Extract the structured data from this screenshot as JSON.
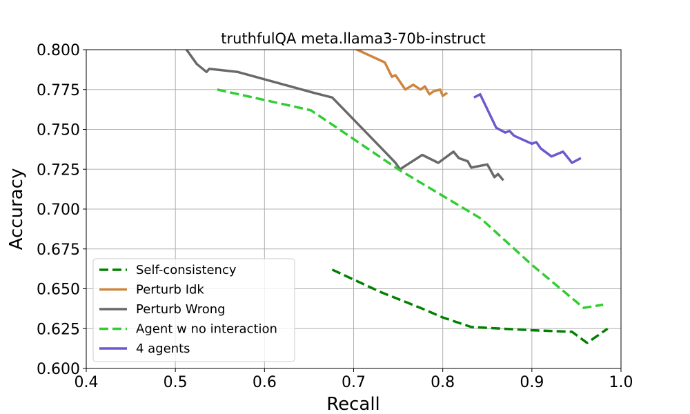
{
  "chart_data": {
    "type": "line",
    "title": "truthfulQA meta.llama3-70b-instruct",
    "xlabel": "Recall",
    "ylabel": "Accuracy",
    "xlim": [
      0.4,
      1.0
    ],
    "ylim": [
      0.6,
      0.8
    ],
    "xticks": [
      0.4,
      0.5,
      0.6,
      0.7,
      0.8,
      0.9,
      1.0
    ],
    "xtick_labels": [
      "0.4",
      "0.5",
      "0.6",
      "0.7",
      "0.8",
      "0.9",
      "1.0"
    ],
    "yticks": [
      0.6,
      0.625,
      0.65,
      0.675,
      0.7,
      0.725,
      0.75,
      0.775,
      0.8
    ],
    "ytick_labels": [
      "0.600",
      "0.625",
      "0.650",
      "0.675",
      "0.700",
      "0.725",
      "0.750",
      "0.775",
      "0.800"
    ],
    "grid": true,
    "legend_position": "lower-left",
    "series": [
      {
        "name": "Self-consistency",
        "color": "#008000",
        "dash": "dashed",
        "x": [
          0.676,
          0.73,
          0.775,
          0.8,
          0.832,
          0.9,
          0.945,
          0.962,
          0.985
        ],
        "y": [
          0.662,
          0.648,
          0.638,
          0.632,
          0.626,
          0.624,
          0.623,
          0.616,
          0.625
        ]
      },
      {
        "name": "Perturb Idk",
        "color": "#cd853f",
        "dash": "solid",
        "x": [
          0.7,
          0.735,
          0.743,
          0.747,
          0.758,
          0.767,
          0.775,
          0.78,
          0.785,
          0.79,
          0.797,
          0.8,
          0.805
        ],
        "y": [
          0.801,
          0.792,
          0.783,
          0.784,
          0.775,
          0.778,
          0.775,
          0.777,
          0.772,
          0.774,
          0.775,
          0.771,
          0.773
        ]
      },
      {
        "name": "Perturb Wrong",
        "color": "#696969",
        "dash": "solid",
        "x": [
          0.51,
          0.524,
          0.535,
          0.538,
          0.57,
          0.655,
          0.676,
          0.735,
          0.747,
          0.752,
          0.777,
          0.795,
          0.812,
          0.818,
          0.828,
          0.832,
          0.85,
          0.858,
          0.862,
          0.868
        ],
        "y": [
          0.802,
          0.791,
          0.786,
          0.788,
          0.786,
          0.773,
          0.77,
          0.736,
          0.729,
          0.725,
          0.734,
          0.729,
          0.736,
          0.732,
          0.73,
          0.726,
          0.728,
          0.72,
          0.722,
          0.718
        ]
      },
      {
        "name": "Agent w no interaction",
        "color": "#32cd32",
        "dash": "dashed",
        "x": [
          0.547,
          0.652,
          0.676,
          0.75,
          0.843,
          0.9,
          0.958,
          0.98
        ],
        "y": [
          0.775,
          0.762,
          0.753,
          0.725,
          0.694,
          0.665,
          0.638,
          0.64
        ]
      },
      {
        "name": "4 agents",
        "color": "#6a5acd",
        "dash": "solid",
        "x": [
          0.835,
          0.842,
          0.86,
          0.87,
          0.875,
          0.88,
          0.9,
          0.905,
          0.91,
          0.922,
          0.935,
          0.945,
          0.955
        ],
        "y": [
          0.77,
          0.772,
          0.751,
          0.748,
          0.749,
          0.746,
          0.741,
          0.742,
          0.738,
          0.733,
          0.736,
          0.729,
          0.732
        ]
      }
    ]
  }
}
